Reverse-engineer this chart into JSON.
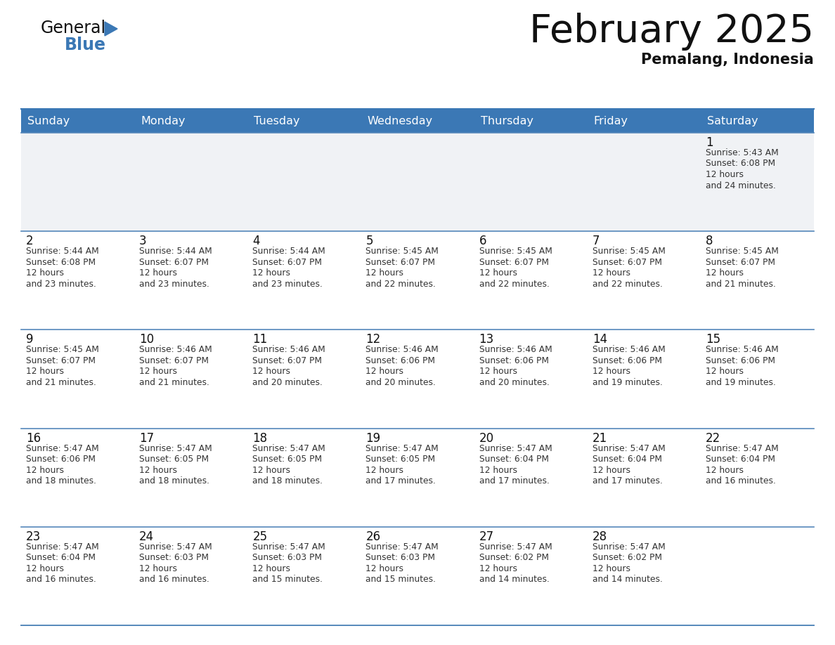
{
  "title": "February 2025",
  "subtitle": "Pemalang, Indonesia",
  "header_color": "#3b78b5",
  "header_text_color": "#ffffff",
  "background_color": "#ffffff",
  "cell_bg_white": "#ffffff",
  "cell_bg_gray": "#f0f2f5",
  "border_color": "#3b78b5",
  "row_line_color": "#5588bb",
  "day_headers": [
    "Sunday",
    "Monday",
    "Tuesday",
    "Wednesday",
    "Thursday",
    "Friday",
    "Saturday"
  ],
  "calendar_data": [
    [
      null,
      null,
      null,
      null,
      null,
      null,
      {
        "day": 1,
        "sunrise": "5:43 AM",
        "sunset": "6:08 PM",
        "daylight": "12 hours and 24 minutes."
      }
    ],
    [
      {
        "day": 2,
        "sunrise": "5:44 AM",
        "sunset": "6:08 PM",
        "daylight": "12 hours and 23 minutes."
      },
      {
        "day": 3,
        "sunrise": "5:44 AM",
        "sunset": "6:07 PM",
        "daylight": "12 hours and 23 minutes."
      },
      {
        "day": 4,
        "sunrise": "5:44 AM",
        "sunset": "6:07 PM",
        "daylight": "12 hours and 23 minutes."
      },
      {
        "day": 5,
        "sunrise": "5:45 AM",
        "sunset": "6:07 PM",
        "daylight": "12 hours and 22 minutes."
      },
      {
        "day": 6,
        "sunrise": "5:45 AM",
        "sunset": "6:07 PM",
        "daylight": "12 hours and 22 minutes."
      },
      {
        "day": 7,
        "sunrise": "5:45 AM",
        "sunset": "6:07 PM",
        "daylight": "12 hours and 22 minutes."
      },
      {
        "day": 8,
        "sunrise": "5:45 AM",
        "sunset": "6:07 PM",
        "daylight": "12 hours and 21 minutes."
      }
    ],
    [
      {
        "day": 9,
        "sunrise": "5:45 AM",
        "sunset": "6:07 PM",
        "daylight": "12 hours and 21 minutes."
      },
      {
        "day": 10,
        "sunrise": "5:46 AM",
        "sunset": "6:07 PM",
        "daylight": "12 hours and 21 minutes."
      },
      {
        "day": 11,
        "sunrise": "5:46 AM",
        "sunset": "6:07 PM",
        "daylight": "12 hours and 20 minutes."
      },
      {
        "day": 12,
        "sunrise": "5:46 AM",
        "sunset": "6:06 PM",
        "daylight": "12 hours and 20 minutes."
      },
      {
        "day": 13,
        "sunrise": "5:46 AM",
        "sunset": "6:06 PM",
        "daylight": "12 hours and 20 minutes."
      },
      {
        "day": 14,
        "sunrise": "5:46 AM",
        "sunset": "6:06 PM",
        "daylight": "12 hours and 19 minutes."
      },
      {
        "day": 15,
        "sunrise": "5:46 AM",
        "sunset": "6:06 PM",
        "daylight": "12 hours and 19 minutes."
      }
    ],
    [
      {
        "day": 16,
        "sunrise": "5:47 AM",
        "sunset": "6:06 PM",
        "daylight": "12 hours and 18 minutes."
      },
      {
        "day": 17,
        "sunrise": "5:47 AM",
        "sunset": "6:05 PM",
        "daylight": "12 hours and 18 minutes."
      },
      {
        "day": 18,
        "sunrise": "5:47 AM",
        "sunset": "6:05 PM",
        "daylight": "12 hours and 18 minutes."
      },
      {
        "day": 19,
        "sunrise": "5:47 AM",
        "sunset": "6:05 PM",
        "daylight": "12 hours and 17 minutes."
      },
      {
        "day": 20,
        "sunrise": "5:47 AM",
        "sunset": "6:04 PM",
        "daylight": "12 hours and 17 minutes."
      },
      {
        "day": 21,
        "sunrise": "5:47 AM",
        "sunset": "6:04 PM",
        "daylight": "12 hours and 17 minutes."
      },
      {
        "day": 22,
        "sunrise": "5:47 AM",
        "sunset": "6:04 PM",
        "daylight": "12 hours and 16 minutes."
      }
    ],
    [
      {
        "day": 23,
        "sunrise": "5:47 AM",
        "sunset": "6:04 PM",
        "daylight": "12 hours and 16 minutes."
      },
      {
        "day": 24,
        "sunrise": "5:47 AM",
        "sunset": "6:03 PM",
        "daylight": "12 hours and 16 minutes."
      },
      {
        "day": 25,
        "sunrise": "5:47 AM",
        "sunset": "6:03 PM",
        "daylight": "12 hours and 15 minutes."
      },
      {
        "day": 26,
        "sunrise": "5:47 AM",
        "sunset": "6:03 PM",
        "daylight": "12 hours and 15 minutes."
      },
      {
        "day": 27,
        "sunrise": "5:47 AM",
        "sunset": "6:02 PM",
        "daylight": "12 hours and 14 minutes."
      },
      {
        "day": 28,
        "sunrise": "5:47 AM",
        "sunset": "6:02 PM",
        "daylight": "12 hours and 14 minutes."
      },
      null
    ]
  ]
}
